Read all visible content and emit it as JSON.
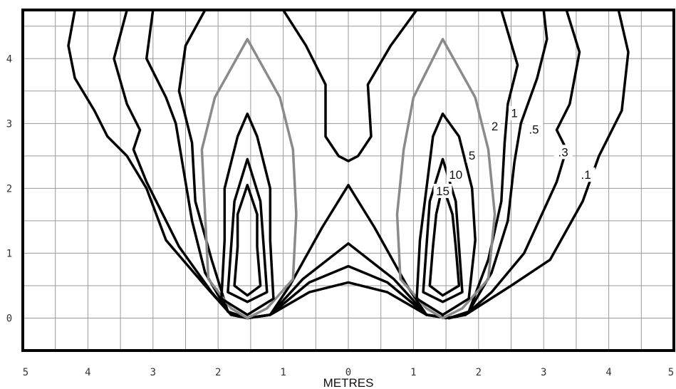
{
  "chart_data": {
    "type": "line",
    "title": "",
    "xlabel": "METRES",
    "ylabel": "",
    "xlim": [
      -5,
      5
    ],
    "ylim": [
      -0.5,
      4.75
    ],
    "grid": true,
    "x_tick_labels": [
      {
        "value": -5,
        "text": "5"
      },
      {
        "value": -4,
        "text": "4"
      },
      {
        "value": -3,
        "text": "3"
      },
      {
        "value": -2,
        "text": "2"
      },
      {
        "value": -1,
        "text": "1"
      },
      {
        "value": 0,
        "text": "0"
      },
      {
        "value": 1,
        "text": "1"
      },
      {
        "value": 2,
        "text": "2"
      },
      {
        "value": 3,
        "text": "3"
      },
      {
        "value": 4,
        "text": "4"
      },
      {
        "value": 5,
        "text": "5"
      }
    ],
    "y_tick_labels": [
      {
        "value": 0,
        "text": "0"
      },
      {
        "value": 1,
        "text": "1"
      },
      {
        "value": 2,
        "text": "2"
      },
      {
        "value": 3,
        "text": "3"
      },
      {
        "value": 4,
        "text": "4"
      }
    ],
    "contours": [
      {
        "label": ".1",
        "color": "#000000",
        "points": [
          [
            -4.2,
            4.75
          ],
          [
            -4.3,
            4.2
          ],
          [
            -4.2,
            3.7
          ],
          [
            -3.9,
            3.2
          ],
          [
            -3.7,
            2.8
          ],
          [
            -3.4,
            2.5
          ],
          [
            -3.1,
            2.0
          ],
          [
            -2.8,
            1.2
          ],
          [
            -2.2,
            0.5
          ],
          [
            -1.8,
            0.05
          ],
          [
            -1.55,
            0.0
          ],
          [
            -1.2,
            0.05
          ],
          [
            -0.6,
            0.4
          ],
          [
            0,
            0.55
          ],
          [
            0.6,
            0.4
          ],
          [
            1.2,
            0.05
          ],
          [
            1.5,
            0.0
          ],
          [
            1.8,
            0.05
          ],
          [
            2.5,
            0.5
          ],
          [
            3.1,
            0.9
          ],
          [
            3.6,
            1.8
          ],
          [
            3.85,
            2.5
          ],
          [
            4.2,
            3.2
          ],
          [
            4.3,
            4.1
          ],
          [
            4.15,
            4.75
          ]
        ]
      },
      {
        "label": ".3",
        "color": "#000000",
        "points": [
          [
            -3.4,
            4.75
          ],
          [
            -3.6,
            4.0
          ],
          [
            -3.4,
            3.3
          ],
          [
            -3.2,
            2.9
          ],
          [
            -3.3,
            2.6
          ],
          [
            -3.1,
            2.1
          ],
          [
            -2.6,
            1.1
          ],
          [
            -2.1,
            0.4
          ],
          [
            -1.8,
            0.05
          ],
          [
            -1.55,
            0.0
          ],
          [
            -1.2,
            0.05
          ],
          [
            -0.6,
            0.55
          ],
          [
            0,
            0.8
          ],
          [
            0.6,
            0.55
          ],
          [
            1.2,
            0.05
          ],
          [
            1.55,
            0.0
          ],
          [
            1.8,
            0.05
          ],
          [
            2.2,
            0.4
          ],
          [
            2.7,
            1.0
          ],
          [
            3.2,
            2.1
          ],
          [
            3.35,
            2.6
          ],
          [
            3.2,
            2.9
          ],
          [
            3.4,
            3.3
          ],
          [
            3.55,
            4.1
          ],
          [
            3.35,
            4.75
          ]
        ]
      },
      {
        "label": ".5",
        "color": "#000000",
        "points": [
          [
            -3.0,
            4.75
          ],
          [
            -3.1,
            4.0
          ],
          [
            -2.8,
            3.4
          ],
          [
            -2.65,
            3.0
          ],
          [
            -2.55,
            2.4
          ],
          [
            -2.4,
            1.5
          ],
          [
            -2.2,
            0.7
          ],
          [
            -1.85,
            0.1
          ],
          [
            -1.55,
            0.0
          ],
          [
            -1.2,
            0.05
          ],
          [
            -0.7,
            0.6
          ],
          [
            0,
            1.15
          ],
          [
            0.7,
            0.6
          ],
          [
            1.2,
            0.05
          ],
          [
            1.55,
            0.0
          ],
          [
            1.85,
            0.1
          ],
          [
            2.2,
            0.7
          ],
          [
            2.45,
            1.5
          ],
          [
            2.55,
            2.4
          ],
          [
            2.65,
            3.0
          ],
          [
            2.9,
            3.7
          ],
          [
            3.05,
            4.3
          ],
          [
            3.0,
            4.75
          ]
        ]
      },
      {
        "label": "1",
        "color": "#000000",
        "points": [
          [
            -2.2,
            4.75
          ],
          [
            -2.5,
            4.2
          ],
          [
            -2.6,
            3.5
          ],
          [
            -2.4,
            2.7
          ],
          [
            -2.35,
            1.8
          ],
          [
            -2.1,
            0.9
          ],
          [
            -1.85,
            0.1
          ],
          [
            -1.55,
            0.0
          ],
          [
            -1.2,
            0.05
          ],
          [
            -0.9,
            0.5
          ],
          [
            -0.4,
            1.4
          ],
          [
            0,
            2.05
          ],
          [
            0.4,
            1.4
          ],
          [
            0.9,
            0.5
          ],
          [
            1.2,
            0.05
          ],
          [
            1.55,
            0.0
          ],
          [
            1.85,
            0.1
          ],
          [
            2.15,
            0.9
          ],
          [
            2.35,
            1.8
          ],
          [
            2.4,
            2.7
          ],
          [
            2.45,
            3.3
          ],
          [
            2.6,
            3.9
          ],
          [
            2.35,
            4.75
          ]
        ]
      },
      {
        "label": "",
        "color": "#000000",
        "points": [
          [
            -1.0,
            4.75
          ],
          [
            -0.65,
            4.2
          ],
          [
            -0.35,
            3.6
          ],
          [
            -0.35,
            2.8
          ],
          [
            -0.15,
            2.5
          ],
          [
            0,
            2.42
          ],
          [
            0.15,
            2.5
          ],
          [
            0.35,
            2.8
          ],
          [
            0.3,
            3.6
          ],
          [
            0.65,
            4.2
          ],
          [
            1.05,
            4.75
          ]
        ]
      },
      {
        "label": "2",
        "color": "#8a8a8a",
        "points": [
          [
            -1.55,
            0.0
          ],
          [
            -1.8,
            0.15
          ],
          [
            -2.15,
            0.6
          ],
          [
            -2.2,
            1.6
          ],
          [
            -2.25,
            2.6
          ],
          [
            -2.05,
            3.4
          ],
          [
            -1.55,
            4.3
          ],
          [
            -1.05,
            3.4
          ],
          [
            -0.85,
            2.6
          ],
          [
            -0.8,
            1.6
          ],
          [
            -0.85,
            0.6
          ],
          [
            -1.25,
            0.15
          ],
          [
            -1.55,
            0.0
          ]
        ]
      },
      {
        "label": "2",
        "color": "#8a8a8a",
        "points": [
          [
            1.45,
            0.0
          ],
          [
            1.2,
            0.15
          ],
          [
            0.8,
            0.6
          ],
          [
            0.75,
            1.6
          ],
          [
            0.85,
            2.6
          ],
          [
            1.0,
            3.4
          ],
          [
            1.45,
            4.3
          ],
          [
            1.95,
            3.4
          ],
          [
            2.15,
            2.6
          ],
          [
            2.25,
            1.6
          ],
          [
            2.15,
            0.6
          ],
          [
            1.75,
            0.15
          ],
          [
            1.45,
            0.0
          ]
        ]
      },
      {
        "label": "",
        "color": "#000000",
        "points": [
          [
            -1.55,
            0.05
          ],
          [
            -1.95,
            0.3
          ],
          [
            -1.9,
            1.2
          ],
          [
            -1.9,
            2.0
          ],
          [
            -1.7,
            2.8
          ],
          [
            -1.55,
            3.15
          ],
          [
            -1.4,
            2.8
          ],
          [
            -1.2,
            2.0
          ],
          [
            -1.2,
            1.2
          ],
          [
            -1.15,
            0.3
          ],
          [
            -1.55,
            0.05
          ]
        ]
      },
      {
        "label": "5",
        "color": "#000000",
        "points": [
          [
            1.45,
            0.05
          ],
          [
            1.05,
            0.3
          ],
          [
            1.1,
            1.2
          ],
          [
            1.2,
            2.0
          ],
          [
            1.3,
            2.8
          ],
          [
            1.45,
            3.15
          ],
          [
            1.7,
            2.8
          ],
          [
            1.9,
            2.0
          ],
          [
            1.95,
            1.2
          ],
          [
            1.85,
            0.3
          ],
          [
            1.45,
            0.05
          ]
        ]
      },
      {
        "label": "",
        "color": "#000000",
        "points": [
          [
            -1.55,
            0.25
          ],
          [
            -1.85,
            0.4
          ],
          [
            -1.8,
            1.1
          ],
          [
            -1.75,
            1.8
          ],
          [
            -1.55,
            2.45
          ],
          [
            -1.35,
            1.8
          ],
          [
            -1.3,
            1.1
          ],
          [
            -1.25,
            0.4
          ],
          [
            -1.55,
            0.25
          ]
        ]
      },
      {
        "label": "10",
        "color": "#000000",
        "points": [
          [
            1.45,
            0.25
          ],
          [
            1.15,
            0.4
          ],
          [
            1.2,
            1.1
          ],
          [
            1.25,
            1.8
          ],
          [
            1.45,
            2.45
          ],
          [
            1.65,
            1.8
          ],
          [
            1.7,
            1.1
          ],
          [
            1.75,
            0.4
          ],
          [
            1.45,
            0.25
          ]
        ]
      },
      {
        "label": "",
        "color": "#000000",
        "points": [
          [
            -1.55,
            0.35
          ],
          [
            -1.75,
            0.5
          ],
          [
            -1.7,
            1.1
          ],
          [
            -1.7,
            1.6
          ],
          [
            -1.55,
            2.05
          ],
          [
            -1.4,
            1.6
          ],
          [
            -1.4,
            1.1
          ],
          [
            -1.35,
            0.5
          ],
          [
            -1.55,
            0.35
          ]
        ]
      },
      {
        "label": "15",
        "color": "#000000",
        "points": [
          [
            1.45,
            0.35
          ],
          [
            1.25,
            0.5
          ],
          [
            1.3,
            1.1
          ],
          [
            1.35,
            1.6
          ],
          [
            1.45,
            2.05
          ],
          [
            1.6,
            1.6
          ],
          [
            1.65,
            1.1
          ],
          [
            1.7,
            0.5
          ],
          [
            1.45,
            0.35
          ]
        ]
      }
    ],
    "labels": [
      {
        "text": "1",
        "x": 2.55,
        "y": 3.15
      },
      {
        "text": "2",
        "x": 2.25,
        "y": 2.95
      },
      {
        "text": ".5",
        "x": 2.85,
        "y": 2.9
      },
      {
        "text": ".3",
        "x": 3.3,
        "y": 2.55
      },
      {
        "text": "5",
        "x": 1.9,
        "y": 2.5
      },
      {
        "text": ".1",
        "x": 3.65,
        "y": 2.2
      },
      {
        "text": "10",
        "x": 1.65,
        "y": 2.2
      },
      {
        "text": "15",
        "x": 1.45,
        "y": 1.95
      }
    ]
  }
}
